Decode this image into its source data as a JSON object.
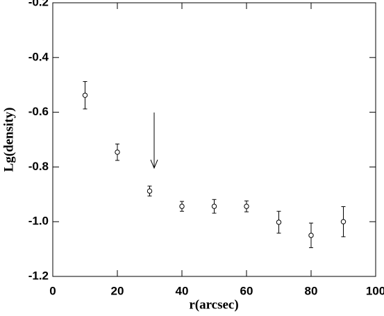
{
  "chart_data": {
    "type": "scatter",
    "x_label": "r(arcsec)",
    "y_label": "Lg(density)",
    "x": [
      10,
      20,
      30,
      40,
      50,
      60,
      70,
      80,
      90
    ],
    "series": [
      {
        "color": "#000000",
        "values": [
          -0.538,
          -0.746,
          -0.888,
          -0.944,
          -0.944,
          -0.944,
          -1.002,
          -1.05,
          -1.0
        ],
        "errors": [
          0.05,
          0.03,
          0.018,
          0.018,
          0.025,
          0.02,
          0.04,
          0.045,
          0.055
        ]
      }
    ],
    "xlim": [
      0,
      100
    ],
    "xticks": [
      0,
      20,
      40,
      60,
      80,
      100
    ],
    "ylim": [
      -1.2,
      -0.2
    ],
    "yticks": [
      -1.2,
      {
        "value": -1,
        "label": "-1.0"
      },
      -0.8,
      -0.6,
      -0.4,
      -0.2
    ]
  }
}
